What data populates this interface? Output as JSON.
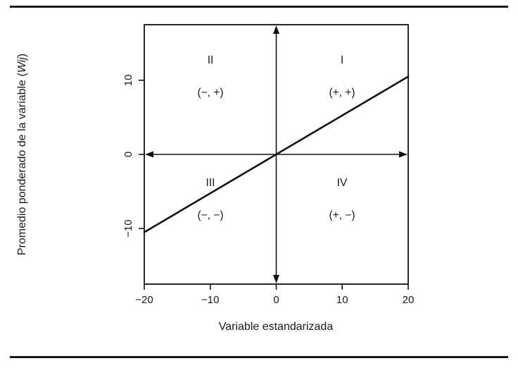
{
  "page": {
    "background": "#ffffff",
    "rule_color": "#1a1a1a",
    "line_color": "#111111"
  },
  "chart_data": {
    "type": "line",
    "title": "",
    "xlabel": "Variable estandarizada",
    "ylabel": "Promedio ponderado de la variable (Wij)",
    "ylabel_parts": {
      "main": "Promedio ponderado de la variable (",
      "italic": "Wij",
      "close": ")"
    },
    "xlim": [
      -20,
      20
    ],
    "ylim": [
      -17.5,
      17.5
    ],
    "x_ticks": [
      -20,
      -10,
      0,
      10,
      20
    ],
    "x_tick_labels": [
      "−20",
      "−10",
      "0",
      "10",
      "20"
    ],
    "y_ticks": [
      10,
      0,
      -10
    ],
    "y_tick_labels": [
      "10",
      "0",
      "−10"
    ],
    "axes_cross": [
      0,
      0
    ],
    "line": {
      "x1": -20,
      "y1": -10.5,
      "x2": 20,
      "y2": 10.5
    },
    "quadrants": [
      {
        "name": "I",
        "signs": "(+, +)"
      },
      {
        "name": "II",
        "signs": "(−, +)"
      },
      {
        "name": "III",
        "signs": "(−, −)"
      },
      {
        "name": "IV",
        "signs": "(+, −)"
      }
    ]
  }
}
